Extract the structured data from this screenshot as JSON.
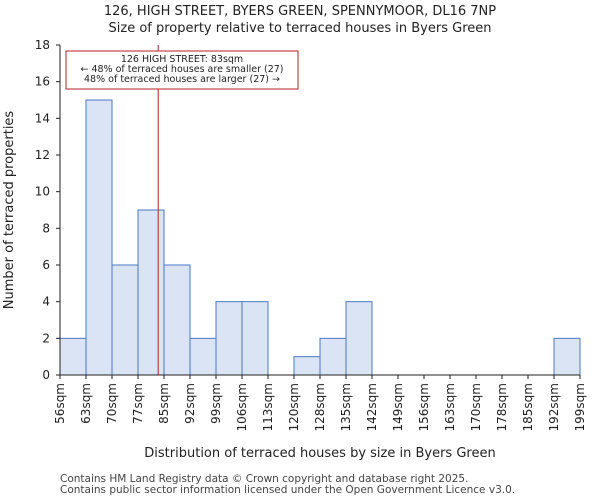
{
  "chart_data": {
    "type": "bar",
    "title": "126, HIGH STREET, BYERS GREEN, SPENNYMOOR, DL16 7NP",
    "subtitle": "Size of property relative to terraced houses in Byers Green",
    "xlabel": "Distribution of terraced houses by size in Byers Green",
    "ylabel": "Number of terraced properties",
    "bin_edges": [
      56,
      63,
      70,
      77,
      85,
      92,
      99,
      106,
      113,
      120,
      128,
      135,
      142,
      149,
      156,
      163,
      170,
      178,
      185,
      192,
      199
    ],
    "tick_labels": [
      "56sqm",
      "63sqm",
      "70sqm",
      "77sqm",
      "85sqm",
      "92sqm",
      "99sqm",
      "106sqm",
      "113sqm",
      "120sqm",
      "128sqm",
      "135sqm",
      "142sqm",
      "149sqm",
      "156sqm",
      "163sqm",
      "170sqm",
      "178sqm",
      "185sqm",
      "192sqm",
      "199sqm"
    ],
    "values": [
      2,
      15,
      6,
      9,
      6,
      2,
      4,
      4,
      0,
      1,
      2,
      4,
      0,
      0,
      0,
      0,
      0,
      0,
      0,
      2
    ],
    "ylim": [
      0,
      18
    ],
    "yticks": [
      0,
      2,
      4,
      6,
      8,
      10,
      12,
      14,
      16,
      18
    ],
    "marker": {
      "value": 83,
      "label_line1": "126 HIGH STREET: 83sqm",
      "label_line2": "← 48% of terraced houses are smaller (27)",
      "label_line3": "48% of terraced houses are larger (27) →"
    },
    "colors": {
      "bar_fill": "#dbe4f4",
      "bar_stroke": "#4a78c4",
      "marker": "#b22222",
      "axis": "#222222"
    }
  },
  "footer": {
    "line1": "Contains HM Land Registry data © Crown copyright and database right 2025.",
    "line2": "Contains public sector information licensed under the Open Government Licence v3.0."
  }
}
